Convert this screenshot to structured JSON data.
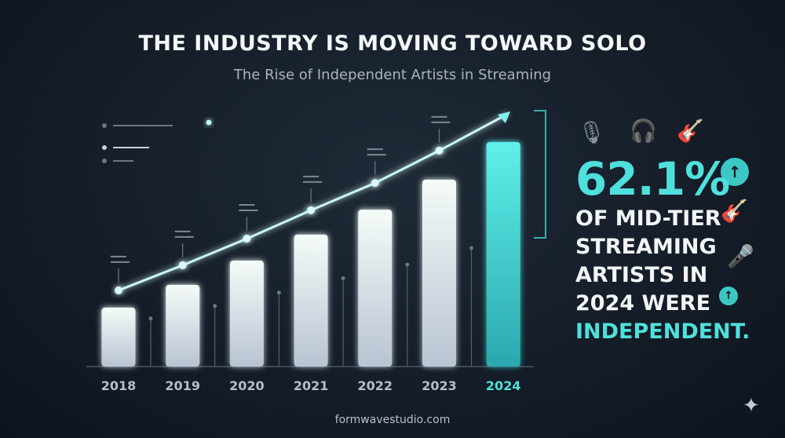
{
  "header": {
    "title": "THE INDUSTRY IS MOVING TOWARD SOLO",
    "subtitle": "The Rise of Independent Artists in Streaming"
  },
  "chart_data": {
    "type": "bar",
    "categories": [
      "2018",
      "2019",
      "2020",
      "2021",
      "2022",
      "2023",
      "2024"
    ],
    "values": [
      16.3,
      22.6,
      29.3,
      36.5,
      43.4,
      51.7,
      62.1
    ],
    "trend_line": true,
    "highlight_category": "2024",
    "bar_color": "#e8eef4",
    "highlight_color": "#4fe0dc",
    "ylim": [
      0,
      62.1
    ],
    "grid": false,
    "title": "",
    "xlabel": "",
    "ylabel": ""
  },
  "stat": {
    "value": "62.1%",
    "lines": [
      "OF MID-TIER",
      "STREAMING",
      "ARTISTS IN",
      "2024 WERE"
    ],
    "emphasis": "INDEPENDENT."
  },
  "icons": [
    "microphone-icon",
    "headphones-icon",
    "guitar-icon",
    "arrow-up-icon",
    "guitar-icon",
    "handheld-microphone-icon",
    "arrow-up-icon",
    "sparkle-icon"
  ],
  "footer": {
    "text": "formwavestudio.com"
  },
  "colors": {
    "accent": "#4fe0dc",
    "background": "#161e29"
  }
}
